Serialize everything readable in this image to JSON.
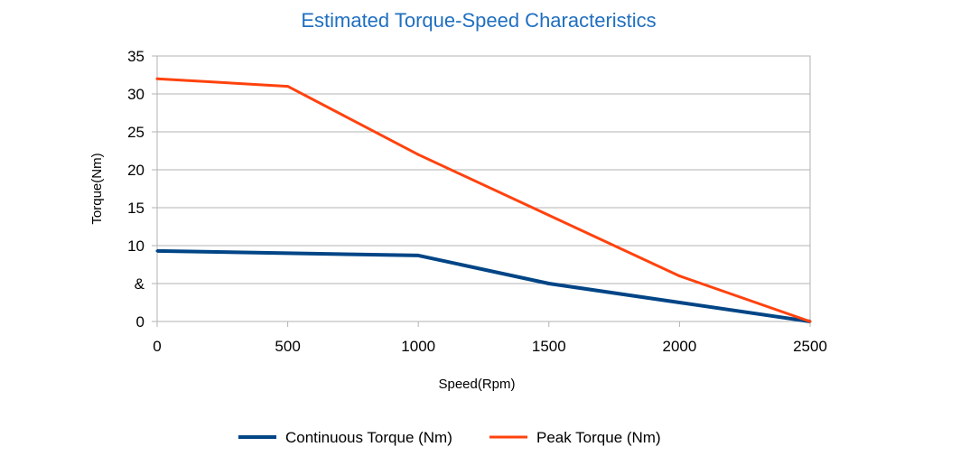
{
  "chart_data": {
    "type": "line",
    "title": "Estimated Torque-Speed Characteristics",
    "xlabel": "Speed(Rpm)",
    "ylabel": "Torque(Nm)",
    "x": [
      0,
      500,
      1000,
      1500,
      2000,
      2500
    ],
    "xlim": [
      0,
      2500
    ],
    "ylim": [
      0,
      35
    ],
    "x_ticks": [
      "0",
      "500",
      "1000",
      "1500",
      "2000",
      "2500"
    ],
    "y_ticks": [
      {
        "value": 0,
        "label": "0"
      },
      {
        "value": 5,
        "label": "&"
      },
      {
        "value": 10,
        "label": "10"
      },
      {
        "value": 15,
        "label": "15"
      },
      {
        "value": 20,
        "label": "20"
      },
      {
        "value": 25,
        "label": "25"
      },
      {
        "value": 30,
        "label": "30"
      },
      {
        "value": 35,
        "label": "35"
      }
    ],
    "grid": "horizontal",
    "legend_position": "bottom",
    "series": [
      {
        "name": "Continuous Torque (Nm)",
        "color": "#004586",
        "values": [
          9.3,
          9.0,
          8.7,
          5.0,
          2.5,
          0.0
        ]
      },
      {
        "name": "Peak Torque (Nm)",
        "color": "#ff420e",
        "values": [
          32.0,
          31.0,
          22.0,
          14.0,
          6.0,
          0.0
        ]
      }
    ]
  }
}
